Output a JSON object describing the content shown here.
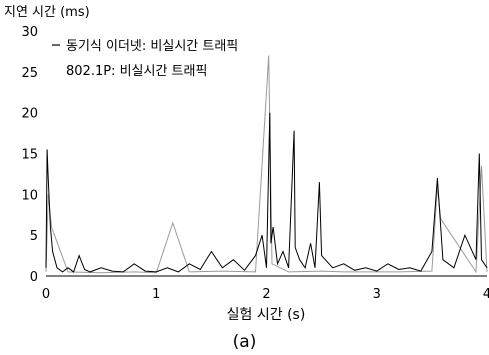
{
  "chart_data": {
    "type": "line",
    "title": "",
    "ylabel": "지연 시간 (ms)",
    "xlabel": "실험 시간 (s)",
    "caption": "(a)",
    "xlim": [
      0,
      4
    ],
    "ylim": [
      0,
      30
    ],
    "x_ticks": [
      "0",
      "1",
      "2",
      "3",
      "4"
    ],
    "y_ticks": [
      "0",
      "5",
      "10",
      "15",
      "20",
      "25",
      "30"
    ],
    "grid": false,
    "legend_position": "top-left",
    "series": [
      {
        "name": "동기식 이더넷: 비실시간 트래픽",
        "color": "#000000",
        "x": [
          0.0,
          0.01,
          0.02,
          0.03,
          0.04,
          0.06,
          0.1,
          0.15,
          0.2,
          0.25,
          0.3,
          0.35,
          0.4,
          0.5,
          0.6,
          0.7,
          0.8,
          0.9,
          1.0,
          1.1,
          1.2,
          1.3,
          1.4,
          1.5,
          1.6,
          1.7,
          1.8,
          1.9,
          1.96,
          2.0,
          2.03,
          2.04,
          2.06,
          2.1,
          2.15,
          2.2,
          2.25,
          2.26,
          2.3,
          2.35,
          2.4,
          2.44,
          2.48,
          2.5,
          2.6,
          2.7,
          2.8,
          2.9,
          3.0,
          3.1,
          3.2,
          3.3,
          3.4,
          3.5,
          3.55,
          3.6,
          3.7,
          3.8,
          3.9,
          3.93,
          3.95,
          4.0
        ],
        "values": [
          1.0,
          15.5,
          12.0,
          9.0,
          6.0,
          3.0,
          1.0,
          0.5,
          1.0,
          0.5,
          2.5,
          0.8,
          0.5,
          1.0,
          0.6,
          0.5,
          1.5,
          0.6,
          0.5,
          1.0,
          0.5,
          1.5,
          0.8,
          3.0,
          1.0,
          2.0,
          0.7,
          2.5,
          5.0,
          1.0,
          20.0,
          4.0,
          6.0,
          1.5,
          3.0,
          1.0,
          17.8,
          3.5,
          2.0,
          1.0,
          4.0,
          1.0,
          11.5,
          2.5,
          1.0,
          1.5,
          0.7,
          1.0,
          0.6,
          1.5,
          0.8,
          1.0,
          0.6,
          3.0,
          12.0,
          2.0,
          1.0,
          5.0,
          2.0,
          15.0,
          2.0,
          1.0
        ]
      },
      {
        "name": "802.1P: 비실시간 트래픽",
        "color": "#9a9a9a",
        "x": [
          0.0,
          0.02,
          0.05,
          0.2,
          0.5,
          0.8,
          1.0,
          1.15,
          1.3,
          1.6,
          1.9,
          2.02,
          2.05,
          2.2,
          2.5,
          2.7,
          3.0,
          3.2,
          3.5,
          3.55,
          3.58,
          3.9,
          3.95,
          4.0
        ],
        "values": [
          0.5,
          10.0,
          6.0,
          0.5,
          0.4,
          0.5,
          0.4,
          6.5,
          0.5,
          0.6,
          0.5,
          27.0,
          1.5,
          0.5,
          0.6,
          0.5,
          0.5,
          0.5,
          0.6,
          11.0,
          7.0,
          0.5,
          13.5,
          0.5
        ]
      }
    ]
  }
}
